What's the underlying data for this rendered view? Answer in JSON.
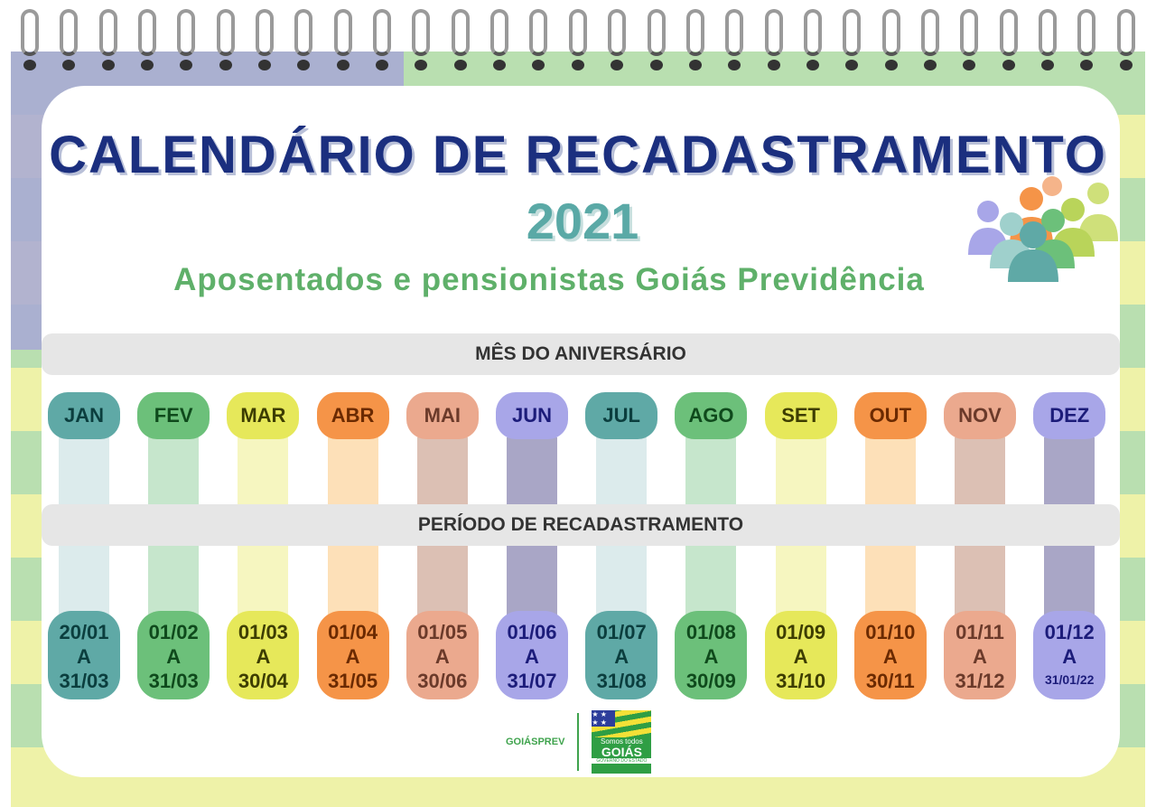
{
  "header": {
    "title": "CALENDÁRIO DE RECADASTRAMENTO",
    "year": "2021",
    "subtitle": "Aposentados e pensionistas Goiás Previdência"
  },
  "bands": {
    "birthday": "MÊS DO ANIVERSÁRIO",
    "period": "PERÍODO DE RECADASTRAMENTO"
  },
  "months": [
    {
      "label": "JAN",
      "start": "20/01",
      "sep": "A",
      "end": "31/03",
      "color": "#5fa9a6",
      "strip": "#dcebec",
      "text": "#0b3e3e"
    },
    {
      "label": "FEV",
      "start": "01/02",
      "sep": "A",
      "end": "31/03",
      "color": "#6cc07a",
      "strip": "#c6e6cc",
      "text": "#0f4a1c"
    },
    {
      "label": "MAR",
      "start": "01/03",
      "sep": "A",
      "end": "30/04",
      "color": "#e6e85a",
      "strip": "#f6f6c0",
      "text": "#3d3d00"
    },
    {
      "label": "ABR",
      "start": "01/04",
      "sep": "A",
      "end": "31/05",
      "color": "#f59448",
      "strip": "#fde0b8",
      "text": "#6b2a00"
    },
    {
      "label": "MAI",
      "start": "01/05",
      "sep": "A",
      "end": "30/06",
      "color": "#eba98e",
      "strip": "#dcc0b4",
      "text": "#6b3a2a"
    },
    {
      "label": "JUN",
      "start": "01/06",
      "sep": "A",
      "end": "31/07",
      "color": "#a8a6e8",
      "strip": "#a9a6c6",
      "text": "#1c1c7a"
    },
    {
      "label": "JUL",
      "start": "01/07",
      "sep": "A",
      "end": "31/08",
      "color": "#5fa9a6",
      "strip": "#dcebec",
      "text": "#0b3e3e"
    },
    {
      "label": "AGO",
      "start": "01/08",
      "sep": "A",
      "end": "30/09",
      "color": "#6cc07a",
      "strip": "#c6e6cc",
      "text": "#0f4a1c"
    },
    {
      "label": "SET",
      "start": "01/09",
      "sep": "A",
      "end": "31/10",
      "color": "#e6e85a",
      "strip": "#f6f6c0",
      "text": "#3d3d00"
    },
    {
      "label": "OUT",
      "start": "01/10",
      "sep": "A",
      "end": "30/11",
      "color": "#f59448",
      "strip": "#fde0b8",
      "text": "#6b2a00"
    },
    {
      "label": "NOV",
      "start": "01/11",
      "sep": "A",
      "end": "31/12",
      "color": "#eba98e",
      "strip": "#dcc0b4",
      "text": "#6b3a2a"
    },
    {
      "label": "DEZ",
      "start": "01/12",
      "sep": "A",
      "end": "31/01/22",
      "color": "#a8a6e8",
      "strip": "#a9a6c6",
      "text": "#1c1c7a"
    }
  ],
  "footer": {
    "goiasprev": "GOIÁSPREV",
    "gov_line1": "Somos todos",
    "gov_line2": "GOIÁS",
    "gov_line3": "GOVERNO DO ESTADO"
  }
}
